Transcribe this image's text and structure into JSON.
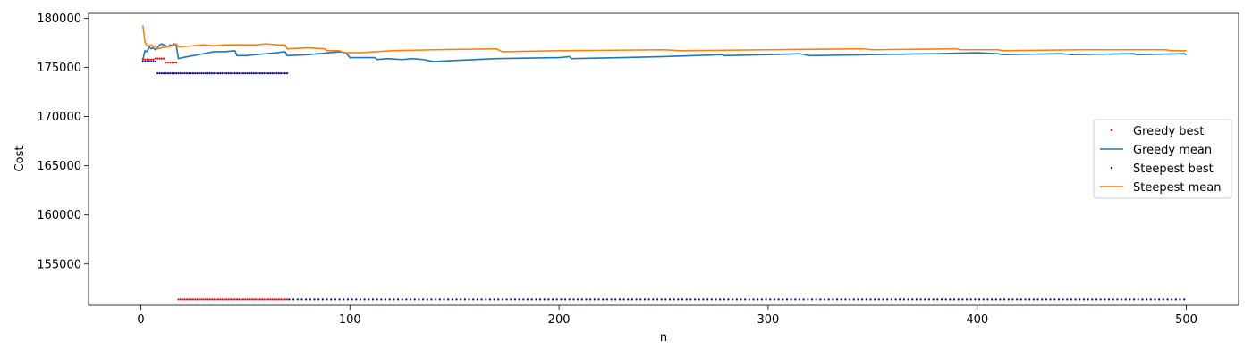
{
  "chart_data": {
    "type": "line",
    "xlabel": "n",
    "ylabel": "Cost",
    "xlim": [
      -25,
      525
    ],
    "ylim": [
      150800,
      180500
    ],
    "xticks": [
      0,
      100,
      200,
      300,
      400,
      500
    ],
    "yticks": [
      155000,
      160000,
      165000,
      170000,
      175000,
      180000
    ],
    "grid": false,
    "legend_position": "center-right",
    "series": [
      {
        "name": "Greedy best",
        "style": "dots",
        "color": "#ff0000",
        "points": [
          [
            1,
            175800
          ],
          [
            2,
            175800
          ],
          [
            3,
            175800
          ],
          [
            4,
            175800
          ],
          [
            5,
            175800
          ],
          [
            6,
            175800
          ],
          [
            7,
            175900
          ],
          [
            8,
            175900
          ],
          [
            9,
            175900
          ],
          [
            10,
            175900
          ],
          [
            11,
            175900
          ],
          [
            12,
            175500
          ],
          [
            13,
            175500
          ],
          [
            14,
            175500
          ],
          [
            15,
            175500
          ],
          [
            16,
            175500
          ],
          [
            17,
            175500
          ],
          [
            18,
            151400
          ],
          [
            19,
            151400
          ],
          [
            20,
            151400
          ],
          [
            21,
            151400
          ],
          [
            22,
            151400
          ],
          [
            23,
            151400
          ],
          [
            24,
            151400
          ],
          [
            25,
            151400
          ],
          [
            26,
            151400
          ],
          [
            27,
            151400
          ],
          [
            28,
            151400
          ],
          [
            29,
            151400
          ],
          [
            30,
            151400
          ],
          [
            31,
            151400
          ],
          [
            32,
            151400
          ],
          [
            33,
            151400
          ],
          [
            34,
            151400
          ],
          [
            35,
            151400
          ],
          [
            36,
            151400
          ],
          [
            37,
            151400
          ],
          [
            38,
            151400
          ],
          [
            39,
            151400
          ],
          [
            40,
            151400
          ],
          [
            41,
            151400
          ],
          [
            42,
            151400
          ],
          [
            43,
            151400
          ],
          [
            44,
            151400
          ],
          [
            45,
            151400
          ],
          [
            46,
            151400
          ],
          [
            47,
            151400
          ],
          [
            48,
            151400
          ],
          [
            49,
            151400
          ],
          [
            50,
            151400
          ],
          [
            51,
            151400
          ],
          [
            52,
            151400
          ],
          [
            53,
            151400
          ],
          [
            54,
            151400
          ],
          [
            55,
            151400
          ],
          [
            56,
            151400
          ],
          [
            57,
            151400
          ],
          [
            58,
            151400
          ],
          [
            59,
            151400
          ],
          [
            60,
            151400
          ],
          [
            61,
            151400
          ],
          [
            62,
            151400
          ],
          [
            63,
            151400
          ],
          [
            64,
            151400
          ],
          [
            65,
            151400
          ],
          [
            66,
            151400
          ],
          [
            67,
            151400
          ],
          [
            68,
            151400
          ],
          [
            69,
            151400
          ],
          [
            70,
            151400
          ]
        ]
      },
      {
        "name": "Greedy mean",
        "style": "line",
        "color": "#1f77b4",
        "points": [
          [
            1,
            175800
          ],
          [
            2,
            176700
          ],
          [
            3,
            176600
          ],
          [
            4,
            177100
          ],
          [
            5,
            176900
          ],
          [
            6,
            177000
          ],
          [
            7,
            176800
          ],
          [
            8,
            177000
          ],
          [
            9,
            177300
          ],
          [
            10,
            177400
          ],
          [
            11,
            177300
          ],
          [
            12,
            177200
          ],
          [
            13,
            177100
          ],
          [
            14,
            177300
          ],
          [
            15,
            177200
          ],
          [
            16,
            177400
          ],
          [
            17,
            177200
          ],
          [
            18,
            175900
          ],
          [
            20,
            176000
          ],
          [
            25,
            176200
          ],
          [
            30,
            176400
          ],
          [
            35,
            176600
          ],
          [
            40,
            176600
          ],
          [
            45,
            176700
          ],
          [
            46,
            176200
          ],
          [
            50,
            176200
          ],
          [
            55,
            176300
          ],
          [
            60,
            176400
          ],
          [
            65,
            176500
          ],
          [
            69,
            176600
          ],
          [
            70,
            176200
          ],
          [
            80,
            176300
          ],
          [
            90,
            176500
          ],
          [
            95,
            176600
          ],
          [
            98,
            176500
          ],
          [
            100,
            176000
          ],
          [
            112,
            176000
          ],
          [
            113,
            175800
          ],
          [
            118,
            175900
          ],
          [
            125,
            175800
          ],
          [
            130,
            175900
          ],
          [
            135,
            175800
          ],
          [
            140,
            175600
          ],
          [
            150,
            175700
          ],
          [
            170,
            175900
          ],
          [
            200,
            176000
          ],
          [
            205,
            176100
          ],
          [
            206,
            175900
          ],
          [
            230,
            176000
          ],
          [
            250,
            176100
          ],
          [
            278,
            176300
          ],
          [
            279,
            176200
          ],
          [
            300,
            176300
          ],
          [
            315,
            176400
          ],
          [
            320,
            176200
          ],
          [
            350,
            176300
          ],
          [
            380,
            176400
          ],
          [
            400,
            176500
          ],
          [
            410,
            176400
          ],
          [
            412,
            176300
          ],
          [
            440,
            176400
          ],
          [
            445,
            176300
          ],
          [
            475,
            176400
          ],
          [
            476,
            176300
          ],
          [
            499,
            176400
          ],
          [
            500,
            176300
          ]
        ]
      },
      {
        "name": "Steepest best",
        "style": "dots",
        "color": "#0000cc",
        "points": [
          [
            1,
            175600
          ],
          [
            2,
            175600
          ],
          [
            3,
            175600
          ],
          [
            4,
            175600
          ],
          [
            5,
            175600
          ],
          [
            6,
            175600
          ],
          [
            7,
            175600
          ],
          [
            8,
            174400
          ],
          [
            9,
            174400
          ],
          [
            10,
            174400
          ],
          [
            11,
            174400
          ],
          [
            12,
            174400
          ],
          [
            13,
            174400
          ],
          [
            14,
            174400
          ],
          [
            15,
            174400
          ],
          [
            16,
            174400
          ],
          [
            17,
            174400
          ],
          [
            18,
            174400
          ],
          [
            19,
            174400
          ],
          [
            20,
            174400
          ],
          [
            21,
            174400
          ],
          [
            22,
            174400
          ],
          [
            23,
            174400
          ],
          [
            24,
            174400
          ],
          [
            25,
            174400
          ],
          [
            26,
            174400
          ],
          [
            27,
            174400
          ],
          [
            28,
            174400
          ],
          [
            29,
            174400
          ],
          [
            30,
            174400
          ],
          [
            31,
            174400
          ],
          [
            32,
            174400
          ],
          [
            33,
            174400
          ],
          [
            34,
            174400
          ],
          [
            35,
            174400
          ],
          [
            36,
            174400
          ],
          [
            37,
            174400
          ],
          [
            38,
            174400
          ],
          [
            39,
            174400
          ],
          [
            40,
            174400
          ],
          [
            41,
            174400
          ],
          [
            42,
            174400
          ],
          [
            43,
            174400
          ],
          [
            44,
            174400
          ],
          [
            45,
            174400
          ],
          [
            46,
            174400
          ],
          [
            47,
            174400
          ],
          [
            48,
            174400
          ],
          [
            49,
            174400
          ],
          [
            50,
            174400
          ],
          [
            51,
            174400
          ],
          [
            52,
            174400
          ],
          [
            53,
            174400
          ],
          [
            54,
            174400
          ],
          [
            55,
            174400
          ],
          [
            56,
            174400
          ],
          [
            57,
            174400
          ],
          [
            58,
            174400
          ],
          [
            59,
            174400
          ],
          [
            60,
            174400
          ],
          [
            61,
            174400
          ],
          [
            62,
            174400
          ],
          [
            63,
            174400
          ],
          [
            64,
            174400
          ],
          [
            65,
            174400
          ],
          [
            66,
            174400
          ],
          [
            67,
            174400
          ],
          [
            68,
            174400
          ],
          [
            69,
            174400
          ],
          [
            70,
            174400
          ]
        ],
        "constant_after": {
          "from": 71,
          "to": 500,
          "step": 2,
          "value": 151400
        }
      },
      {
        "name": "Steepest mean",
        "style": "line",
        "color": "#ff7f0e",
        "points": [
          [
            1,
            179300
          ],
          [
            2,
            177600
          ],
          [
            3,
            177200
          ],
          [
            4,
            177200
          ],
          [
            5,
            177300
          ],
          [
            6,
            177100
          ],
          [
            7,
            177200
          ],
          [
            8,
            176900
          ],
          [
            10,
            177000
          ],
          [
            15,
            177200
          ],
          [
            17,
            177400
          ],
          [
            18,
            177100
          ],
          [
            25,
            177200
          ],
          [
            30,
            177300
          ],
          [
            35,
            177200
          ],
          [
            40,
            177300
          ],
          [
            45,
            177300
          ],
          [
            50,
            177300
          ],
          [
            55,
            177300
          ],
          [
            60,
            177400
          ],
          [
            65,
            177300
          ],
          [
            69,
            177300
          ],
          [
            70,
            176900
          ],
          [
            80,
            177000
          ],
          [
            88,
            176900
          ],
          [
            89,
            176700
          ],
          [
            95,
            176700
          ],
          [
            97,
            176500
          ],
          [
            105,
            176500
          ],
          [
            120,
            176700
          ],
          [
            140,
            176800
          ],
          [
            170,
            176900
          ],
          [
            173,
            176600
          ],
          [
            200,
            176700
          ],
          [
            250,
            176800
          ],
          [
            258,
            176700
          ],
          [
            300,
            176800
          ],
          [
            345,
            176900
          ],
          [
            350,
            176800
          ],
          [
            390,
            176900
          ],
          [
            392,
            176800
          ],
          [
            410,
            176800
          ],
          [
            412,
            176700
          ],
          [
            450,
            176800
          ],
          [
            490,
            176800
          ],
          [
            493,
            176700
          ],
          [
            500,
            176700
          ]
        ]
      }
    ]
  }
}
